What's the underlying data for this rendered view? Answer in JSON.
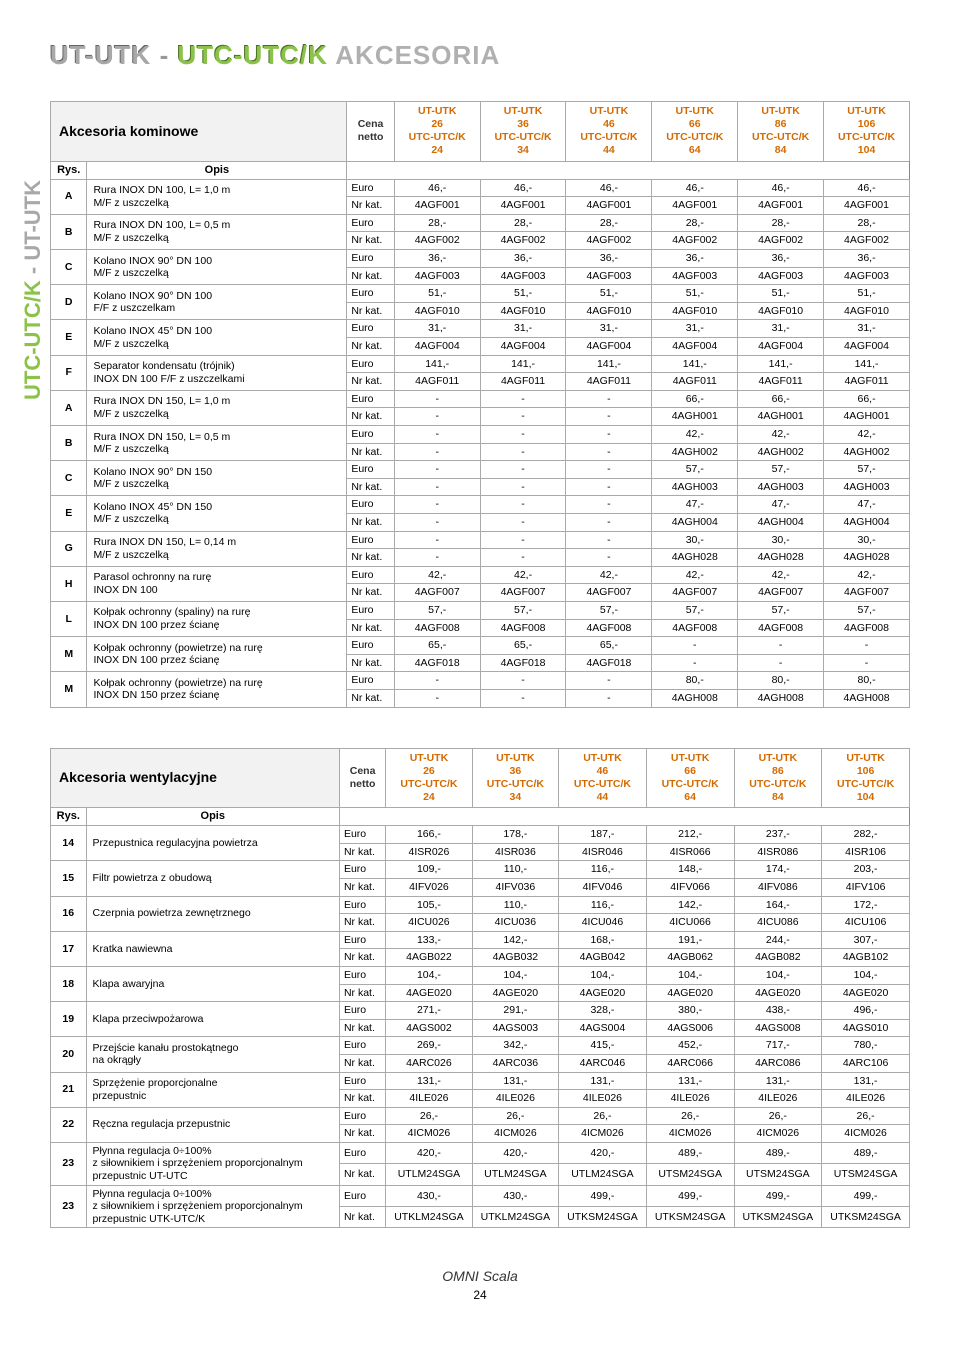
{
  "title": {
    "part1": "UT-UTK",
    "dash": "-",
    "part2": "UTC-UTC/K",
    "suffix": "AKCESORIA"
  },
  "side": {
    "part1": "UT-UTK",
    "dash": "-",
    "part2": "UTC-UTC/K"
  },
  "columns": [
    {
      "top": "UT-UTK\n26",
      "bot": "UTC-UTC/K\n24"
    },
    {
      "top": "UT-UTK\n36",
      "bot": "UTC-UTC/K\n34"
    },
    {
      "top": "UT-UTK\n46",
      "bot": "UTC-UTC/K\n44"
    },
    {
      "top": "UT-UTK\n66",
      "bot": "UTC-UTC/K\n64"
    },
    {
      "top": "UT-UTK\n86",
      "bot": "UTC-UTC/K\n84"
    },
    {
      "top": "UT-UTK\n106",
      "bot": "UTC-UTC/K\n104"
    }
  ],
  "labels": {
    "cena": "Cena\nnetto",
    "rys": "Rys.",
    "opis": "Opis",
    "euro": "Euro",
    "nrkat": "Nr kat."
  },
  "table1": {
    "title": "Akcesoria kominowe",
    "rows": [
      {
        "rys": "A",
        "opis": "Rura INOX DN 100, L= 1,0 m\nM/F z uszczelką",
        "euro": [
          "46,-",
          "46,-",
          "46,-",
          "46,-",
          "46,-",
          "46,-"
        ],
        "kat": [
          "4AGF001",
          "4AGF001",
          "4AGF001",
          "4AGF001",
          "4AGF001",
          "4AGF001"
        ]
      },
      {
        "rys": "B",
        "opis": "Rura INOX DN 100, L= 0,5 m\nM/F z uszczelką",
        "euro": [
          "28,-",
          "28,-",
          "28,-",
          "28,-",
          "28,-",
          "28,-"
        ],
        "kat": [
          "4AGF002",
          "4AGF002",
          "4AGF002",
          "4AGF002",
          "4AGF002",
          "4AGF002"
        ]
      },
      {
        "rys": "C",
        "opis": "Kolano INOX 90° DN 100\nM/F z uszczelką",
        "euro": [
          "36,-",
          "36,-",
          "36,-",
          "36,-",
          "36,-",
          "36,-"
        ],
        "kat": [
          "4AGF003",
          "4AGF003",
          "4AGF003",
          "4AGF003",
          "4AGF003",
          "4AGF003"
        ]
      },
      {
        "rys": "D",
        "opis": "Kolano INOX 90° DN 100\nF/F z uszczelkam",
        "euro": [
          "51,-",
          "51,-",
          "51,-",
          "51,-",
          "51,-",
          "51,-"
        ],
        "kat": [
          "4AGF010",
          "4AGF010",
          "4AGF010",
          "4AGF010",
          "4AGF010",
          "4AGF010"
        ]
      },
      {
        "rys": "E",
        "opis": "Kolano INOX 45° DN 100\nM/F z uszczelką",
        "euro": [
          "31,-",
          "31,-",
          "31,-",
          "31,-",
          "31,-",
          "31,-"
        ],
        "kat": [
          "4AGF004",
          "4AGF004",
          "4AGF004",
          "4AGF004",
          "4AGF004",
          "4AGF004"
        ]
      },
      {
        "rys": "F",
        "opis": "Separator kondensatu (trójnik)\nINOX DN 100 F/F z uszczelkami",
        "euro": [
          "141,-",
          "141,-",
          "141,-",
          "141,-",
          "141,-",
          "141,-"
        ],
        "kat": [
          "4AGF011",
          "4AGF011",
          "4AGF011",
          "4AGF011",
          "4AGF011",
          "4AGF011"
        ]
      },
      {
        "rys": "A",
        "opis": "Rura INOX DN 150, L= 1,0 m\nM/F z uszczelką",
        "euro": [
          "-",
          "-",
          "-",
          "66,-",
          "66,-",
          "66,-"
        ],
        "kat": [
          "-",
          "-",
          "-",
          "4AGH001",
          "4AGH001",
          "4AGH001"
        ]
      },
      {
        "rys": "B",
        "opis": "Rura INOX DN 150, L= 0,5 m\nM/F z uszczelką",
        "euro": [
          "-",
          "-",
          "-",
          "42,-",
          "42,-",
          "42,-"
        ],
        "kat": [
          "-",
          "-",
          "-",
          "4AGH002",
          "4AGH002",
          "4AGH002"
        ]
      },
      {
        "rys": "C",
        "opis": "Kolano INOX 90° DN 150\nM/F z uszczelką",
        "euro": [
          "-",
          "-",
          "-",
          "57,-",
          "57,-",
          "57,-"
        ],
        "kat": [
          "-",
          "-",
          "-",
          "4AGH003",
          "4AGH003",
          "4AGH003"
        ]
      },
      {
        "rys": "E",
        "opis": "Kolano INOX 45° DN 150\nM/F z uszczelką",
        "euro": [
          "-",
          "-",
          "-",
          "47,-",
          "47,-",
          "47,-"
        ],
        "kat": [
          "-",
          "-",
          "-",
          "4AGH004",
          "4AGH004",
          "4AGH004"
        ]
      },
      {
        "rys": "G",
        "opis": "Rura INOX DN 150, L= 0,14 m\nM/F z uszczelką",
        "euro": [
          "-",
          "-",
          "-",
          "30,-",
          "30,-",
          "30,-"
        ],
        "kat": [
          "-",
          "-",
          "-",
          "4AGH028",
          "4AGH028",
          "4AGH028"
        ]
      },
      {
        "rys": "H",
        "opis": "Parasol ochronny na rurę\nINOX DN 100",
        "euro": [
          "42,-",
          "42,-",
          "42,-",
          "42,-",
          "42,-",
          "42,-"
        ],
        "kat": [
          "4AGF007",
          "4AGF007",
          "4AGF007",
          "4AGF007",
          "4AGF007",
          "4AGF007"
        ]
      },
      {
        "rys": "L",
        "opis": "Kołpak ochronny (spaliny) na rurę\nINOX DN 100 przez ścianę",
        "euro": [
          "57,-",
          "57,-",
          "57,-",
          "57,-",
          "57,-",
          "57,-"
        ],
        "kat": [
          "4AGF008",
          "4AGF008",
          "4AGF008",
          "4AGF008",
          "4AGF008",
          "4AGF008"
        ]
      },
      {
        "rys": "M",
        "opis": "Kołpak ochronny (powietrze) na rurę\nINOX DN 100 przez ścianę",
        "euro": [
          "65,-",
          "65,-",
          "65,-",
          "-",
          "-",
          "-"
        ],
        "kat": [
          "4AGF018",
          "4AGF018",
          "4AGF018",
          "-",
          "-",
          "-"
        ]
      },
      {
        "rys": "M",
        "opis": "Kołpak ochronny (powietrze) na rurę\nINOX DN 150 przez ścianę",
        "euro": [
          "-",
          "-",
          "-",
          "80,-",
          "80,-",
          "80,-"
        ],
        "kat": [
          "-",
          "-",
          "-",
          "4AGH008",
          "4AGH008",
          "4AGH008"
        ]
      }
    ]
  },
  "table2": {
    "title": "Akcesoria wentylacyjne",
    "rows": [
      {
        "rys": "14",
        "opis": "Przepustnica regulacyjna powietrza",
        "euro": [
          "166,-",
          "178,-",
          "187,-",
          "212,-",
          "237,-",
          "282,-"
        ],
        "kat": [
          "4ISR026",
          "4ISR036",
          "4ISR046",
          "4ISR066",
          "4ISR086",
          "4ISR106"
        ]
      },
      {
        "rys": "15",
        "opis": "Filtr powietrza z obudową",
        "euro": [
          "109,-",
          "110,-",
          "116,-",
          "148,-",
          "174,-",
          "203,-"
        ],
        "kat": [
          "4IFV026",
          "4IFV036",
          "4IFV046",
          "4IFV066",
          "4IFV086",
          "4IFV106"
        ]
      },
      {
        "rys": "16",
        "opis": "Czerpnia powietrza zewnętrznego",
        "euro": [
          "105,-",
          "110,-",
          "116,-",
          "142,-",
          "164,-",
          "172,-"
        ],
        "kat": [
          "4ICU026",
          "4ICU036",
          "4ICU046",
          "4ICU066",
          "4ICU086",
          "4ICU106"
        ]
      },
      {
        "rys": "17",
        "opis": "Kratka nawiewna",
        "euro": [
          "133,-",
          "142,-",
          "168,-",
          "191,-",
          "244,-",
          "307,-"
        ],
        "kat": [
          "4AGB022",
          "4AGB032",
          "4AGB042",
          "4AGB062",
          "4AGB082",
          "4AGB102"
        ]
      },
      {
        "rys": "18",
        "opis": "Klapa awaryjna",
        "euro": [
          "104,-",
          "104,-",
          "104,-",
          "104,-",
          "104,-",
          "104,-"
        ],
        "kat": [
          "4AGE020",
          "4AGE020",
          "4AGE020",
          "4AGE020",
          "4AGE020",
          "4AGE020"
        ]
      },
      {
        "rys": "19",
        "opis": "Klapa przeciwpożarowa",
        "euro": [
          "271,-",
          "291,-",
          "328,-",
          "380,-",
          "438,-",
          "496,-"
        ],
        "kat": [
          "4AGS002",
          "4AGS003",
          "4AGS004",
          "4AGS006",
          "4AGS008",
          "4AGS010"
        ]
      },
      {
        "rys": "20",
        "opis": "Przejście kanału prostokątnego\nna okrągły",
        "euro": [
          "269,-",
          "342,-",
          "415,-",
          "452,-",
          "717,-",
          "780,-"
        ],
        "kat": [
          "4ARC026",
          "4ARC036",
          "4ARC046",
          "4ARC066",
          "4ARC086",
          "4ARC106"
        ]
      },
      {
        "rys": "21",
        "opis": "Sprzężenie proporcjonalne\nprzepustnic",
        "euro": [
          "131,-",
          "131,-",
          "131,-",
          "131,-",
          "131,-",
          "131,-"
        ],
        "kat": [
          "4ILE026",
          "4ILE026",
          "4ILE026",
          "4ILE026",
          "4ILE026",
          "4ILE026"
        ]
      },
      {
        "rys": "22",
        "opis": "Ręczna regulacja przepustnic",
        "euro": [
          "26,-",
          "26,-",
          "26,-",
          "26,-",
          "26,-",
          "26,-"
        ],
        "kat": [
          "4ICM026",
          "4ICM026",
          "4ICM026",
          "4ICM026",
          "4ICM026",
          "4ICM026"
        ]
      },
      {
        "rys": "23",
        "opis": "Płynna regulacja 0÷100%\nz siłownikiem i sprzężeniem proporcjonalnym\nprzepustnic UT-UTC",
        "euro": [
          "420,-",
          "420,-",
          "420,-",
          "489,-",
          "489,-",
          "489,-"
        ],
        "kat": [
          "UTLM24SGA",
          "UTLM24SGA",
          "UTLM24SGA",
          "UTSM24SGA",
          "UTSM24SGA",
          "UTSM24SGA"
        ]
      },
      {
        "rys": "23",
        "opis": "Płynna regulacja 0÷100%\nz siłownikiem i sprzężeniem proporcjonalnym\nprzepustnic UTK-UTC/K",
        "euro": [
          "430,-",
          "430,-",
          "499,-",
          "499,-",
          "499,-",
          "499,-"
        ],
        "kat": [
          "UTKLM24SGA",
          "UTKLM24SGA",
          "UTKSM24SGA",
          "UTKSM24SGA",
          "UTKSM24SGA",
          "UTKSM24SGA"
        ]
      }
    ]
  },
  "footer": {
    "logo": "OMNI Scala",
    "page": "24"
  },
  "style": {
    "accent_color": "#d46a00",
    "border_color": "#888888",
    "title_gray": "#a8a8a8",
    "title_green": "#8bc34a",
    "font_size_table": 10.5,
    "font_size_title": 26
  }
}
